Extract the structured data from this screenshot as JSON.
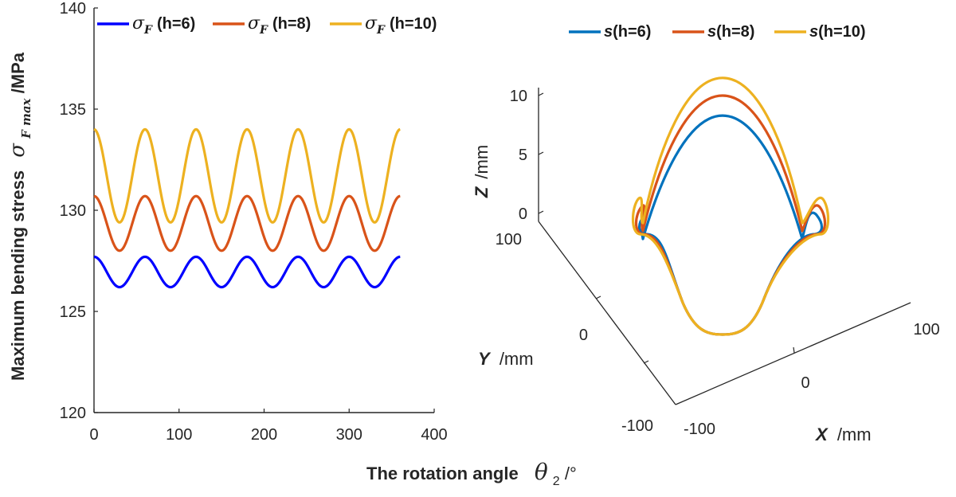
{
  "chart_data": [
    {
      "type": "line",
      "title": "",
      "xlabel": "The rotation angle",
      "xlabel_symbol": "θ",
      "xlabel_subscript": "2",
      "xlabel_unit": "/°",
      "ylabel": "Maximum bending stress",
      "ylabel_symbol": "σ",
      "ylabel_subscript": "F max",
      "ylabel_unit": "/MPa",
      "xlim": [
        0,
        400
      ],
      "ylim": [
        120,
        140
      ],
      "xticks": [
        0,
        100,
        200,
        300,
        400
      ],
      "yticks": [
        120,
        125,
        130,
        135,
        140
      ],
      "period": 60,
      "x_range": [
        0,
        360
      ],
      "legend_position": "top",
      "series": [
        {
          "name": "σF (h=6)",
          "sym": "σ",
          "sub": "F",
          "label": "(h=6)",
          "mean": 126.95,
          "amplitude": 0.75,
          "min": 126.2,
          "max": 127.7,
          "color": "#0000ff"
        },
        {
          "name": "σF (h=8)",
          "sym": "σ",
          "sub": "F",
          "label": "(h=8)",
          "mean": 129.35,
          "amplitude": 1.35,
          "min": 128.0,
          "max": 130.7,
          "color": "#d95319"
        },
        {
          "name": "σF (h=10)",
          "sym": "σ",
          "sub": "F",
          "label": "(h=10)",
          "mean": 131.7,
          "amplitude": 2.3,
          "min": 129.4,
          "max": 134.0,
          "color": "#edb120"
        }
      ]
    },
    {
      "type": "line-3d",
      "title": "",
      "xlabel": "X",
      "xlabel_unit": "/mm",
      "ylabel": "Y",
      "ylabel_unit": "/mm",
      "zlabel": "Z",
      "zlabel_unit": "/mm",
      "xticks": [
        -100,
        0,
        100
      ],
      "yticks": [
        -100,
        0,
        100
      ],
      "zticks": [
        0,
        5,
        10
      ],
      "legend_position": "top",
      "series": [
        {
          "name": "s(h=6)",
          "sym": "s",
          "label": "(h=6)",
          "peak_z": 8.3,
          "color": "#0072bd"
        },
        {
          "name": "s(h=8)",
          "sym": "s",
          "label": "(h=8)",
          "peak_z": 10.0,
          "color": "#d95319"
        },
        {
          "name": "s(h=10)",
          "sym": "s",
          "label": "(h=10)",
          "peak_z": 11.5,
          "color": "#edb120"
        }
      ]
    }
  ]
}
